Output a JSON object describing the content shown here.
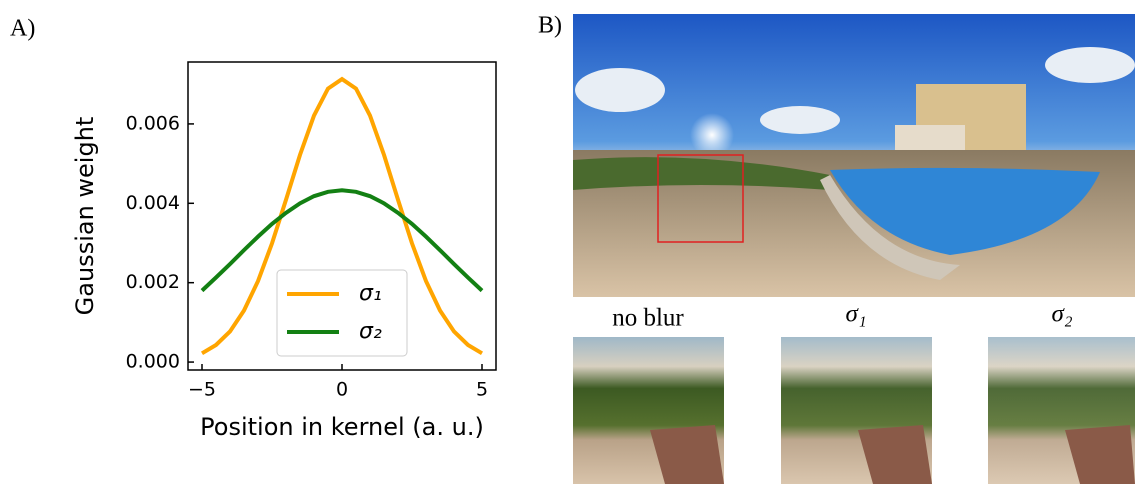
{
  "panel_labels": [
    "A)",
    "B)"
  ],
  "chart_data": {
    "type": "line",
    "x_label": "Position in kernel (a. u.)",
    "y_label": "Gaussian weight",
    "x": [
      -5,
      -4.5,
      -4,
      -3.5,
      -3,
      -2.5,
      -2,
      -1.5,
      -1,
      -0.5,
      0,
      0.5,
      1,
      1.5,
      2,
      2.5,
      3,
      3.5,
      4,
      4.5,
      5
    ],
    "series": [
      {
        "name": "σ₁",
        "color": "#ffa500",
        "values": [
          0.00022,
          0.00043,
          0.00077,
          0.0013,
          0.00204,
          0.00299,
          0.00409,
          0.00522,
          0.00621,
          0.00689,
          0.00713,
          0.00689,
          0.00621,
          0.00522,
          0.00409,
          0.00299,
          0.00204,
          0.0013,
          0.00077,
          0.00043,
          0.00022
        ]
      },
      {
        "name": "σ₂",
        "color": "#138013",
        "values": [
          0.0018,
          0.00213,
          0.00247,
          0.00282,
          0.00316,
          0.00348,
          0.00376,
          0.004,
          0.00418,
          0.00429,
          0.00433,
          0.00429,
          0.00418,
          0.004,
          0.00376,
          0.00348,
          0.00316,
          0.00282,
          0.00247,
          0.00213,
          0.0018
        ]
      }
    ],
    "xlim": [
      -5.5,
      5.5
    ],
    "ylim": [
      -0.0002,
      0.00756
    ],
    "xticks": [
      {
        "value": -5,
        "label": "−5"
      },
      0,
      5
    ],
    "yticks": [
      {
        "value": 0,
        "label": "0.000"
      },
      {
        "value": 0.002,
        "label": "0.002"
      },
      {
        "value": 0.004,
        "label": "0.004"
      },
      {
        "value": 0.006,
        "label": "0.006"
      }
    ],
    "legend": "lower center"
  },
  "image_captions": [
    "no blur",
    "σ₁",
    "σ₂"
  ]
}
